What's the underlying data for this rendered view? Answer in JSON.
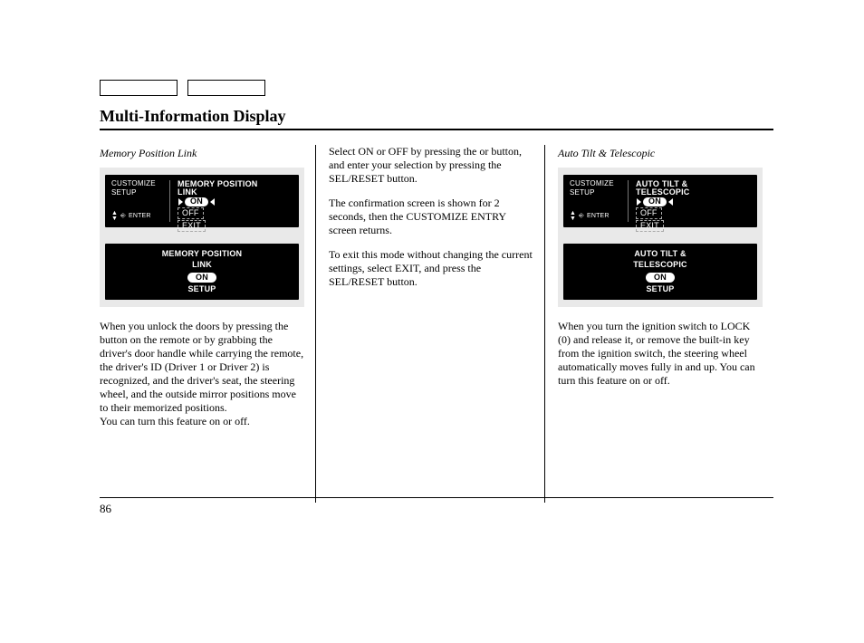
{
  "page": {
    "title": "Multi-Information Display",
    "number": "86"
  },
  "col1": {
    "subhead": "Memory Position Link",
    "display_menu": {
      "left_line1": "CUSTOMIZE",
      "left_line2": "SETUP",
      "enter_label": "ENTER",
      "title_line1": "MEMORY POSITION",
      "title_line2": "LINK",
      "opt_selected": "ON",
      "opt2": "OFF",
      "opt3": "EXIT"
    },
    "display_confirm": {
      "title_line1": "MEMORY POSITION",
      "title_line2": "LINK",
      "value": "ON",
      "sub": "SETUP"
    },
    "para": "When you unlock the doors by pressing the button on the remote or by grabbing the driver's door handle while carrying the remote, the driver's ID (Driver 1 or Driver 2) is recognized, and the driver's seat, the steering wheel, and the outside mirror positions move to their memorized positions.\nYou can turn this feature on or off."
  },
  "col2": {
    "para1": "Select ON or OFF by pressing the      or      button, and enter your selection by pressing the SEL/RESET button.",
    "para2": "The confirmation screen is shown for 2 seconds, then the CUSTOMIZE ENTRY screen returns.",
    "para3": "To exit this mode without changing the current settings, select EXIT, and press the SEL/RESET button."
  },
  "col3": {
    "subhead": "Auto Tilt & Telescopic",
    "display_menu": {
      "left_line1": "CUSTOMIZE",
      "left_line2": "SETUP",
      "enter_label": "ENTER",
      "title_line1": "AUTO TILT &",
      "title_line2": "TELESCOPIC",
      "opt_selected": "ON",
      "opt2": "OFF",
      "opt3": "EXIT"
    },
    "display_confirm": {
      "title_line1": "AUTO TILT &",
      "title_line2": "TELESCOPIC",
      "value": "ON",
      "sub": "SETUP"
    },
    "para": "When you turn the ignition switch to LOCK (0) and release it, or remove the built-in key from the ignition switch, the steering wheel automatically moves fully in and up. You can turn this feature on or off."
  }
}
